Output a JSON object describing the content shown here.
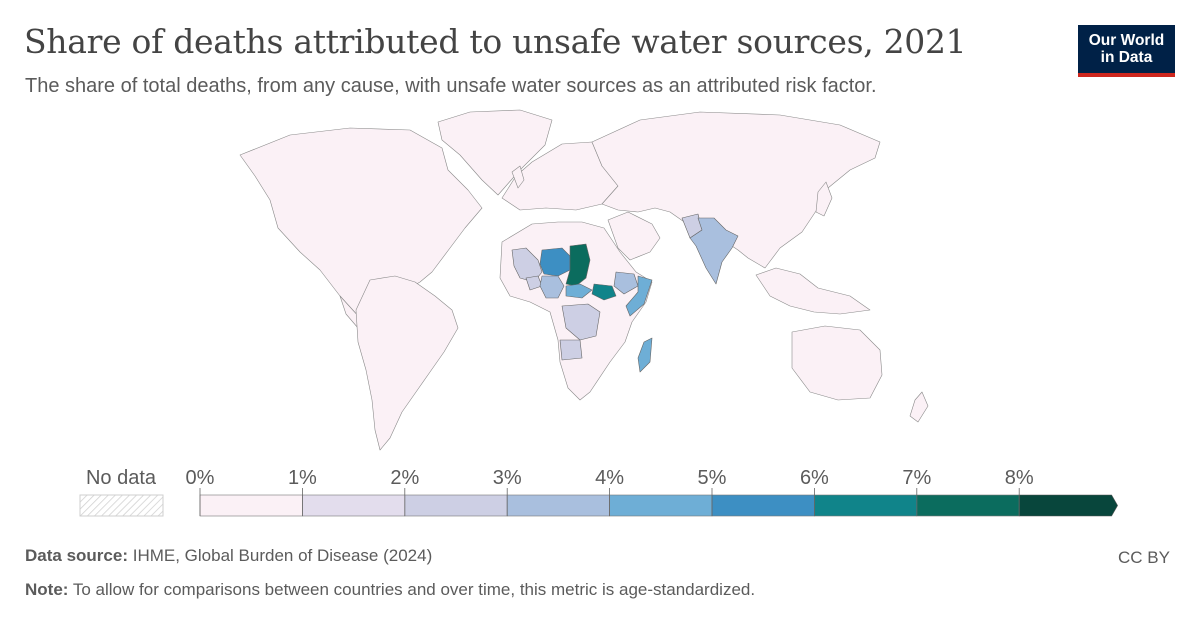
{
  "header": {
    "title": "Share of deaths attributed to unsafe water sources, 2021",
    "subtitle": "The share of total deaths, from any cause, with unsafe water sources as an attributed risk factor."
  },
  "logo": {
    "line1": "Our World",
    "line2": "in Data",
    "background": "#002147",
    "accent": "#ce261e"
  },
  "legend": {
    "no_data_label": "No data",
    "ticks": [
      "0%",
      "1%",
      "2%",
      "3%",
      "4%",
      "5%",
      "6%",
      "7%",
      "8%"
    ],
    "colors": [
      "#fbf1f6",
      "#e3dded",
      "#cdcfe4",
      "#a9bfde",
      "#6eaed6",
      "#3d8fc3",
      "#10848a",
      "#0b6c5e",
      "#08463c"
    ]
  },
  "map_data": {
    "scale": "share of deaths (%)",
    "bins": [
      "0-1%",
      "1-2%",
      "2-3%",
      "3-4%",
      "4-5%",
      "5-6%",
      "6-7%",
      "7-8%",
      ">8%"
    ],
    "regions": [
      {
        "name": "Chad",
        "bin": "7-8%"
      },
      {
        "name": "South Sudan",
        "bin": "6-7%"
      },
      {
        "name": "Niger",
        "bin": "5-6%"
      },
      {
        "name": "Somalia",
        "bin": "4-5%"
      },
      {
        "name": "Madagascar",
        "bin": "4-5%"
      },
      {
        "name": "Central African Republic",
        "bin": "4-5%"
      },
      {
        "name": "Nigeria",
        "bin": "3-4%"
      },
      {
        "name": "Ethiopia",
        "bin": "3-4%"
      },
      {
        "name": "India",
        "bin": "3-4%"
      },
      {
        "name": "Mali",
        "bin": "2-3%"
      },
      {
        "name": "DR Congo",
        "bin": "2-3%"
      },
      {
        "name": "Angola",
        "bin": "2-3%"
      },
      {
        "name": "Pakistan",
        "bin": "2-3%"
      },
      {
        "name": "Burkina Faso",
        "bin": "2-3%"
      }
    ]
  },
  "footer": {
    "source_label": "Data source:",
    "source_text": "IHME, Global Burden of Disease (2024)",
    "note_label": "Note:",
    "note_text": "To allow for comparisons between countries and over time, this metric is age-standardized.",
    "license": "CC BY"
  }
}
